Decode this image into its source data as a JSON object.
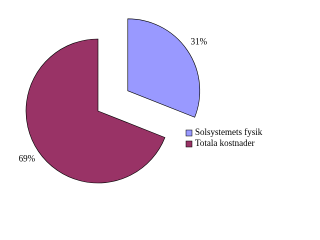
{
  "chart_data": {
    "type": "pie",
    "categories": [
      "Solsystemets fysik",
      "Totala kostnader"
    ],
    "values": [
      31,
      69
    ],
    "value_labels": [
      "31%",
      "69%"
    ],
    "colors": [
      "#9999ff",
      "#993366"
    ],
    "explode": [
      true,
      false
    ],
    "legend": "right"
  }
}
